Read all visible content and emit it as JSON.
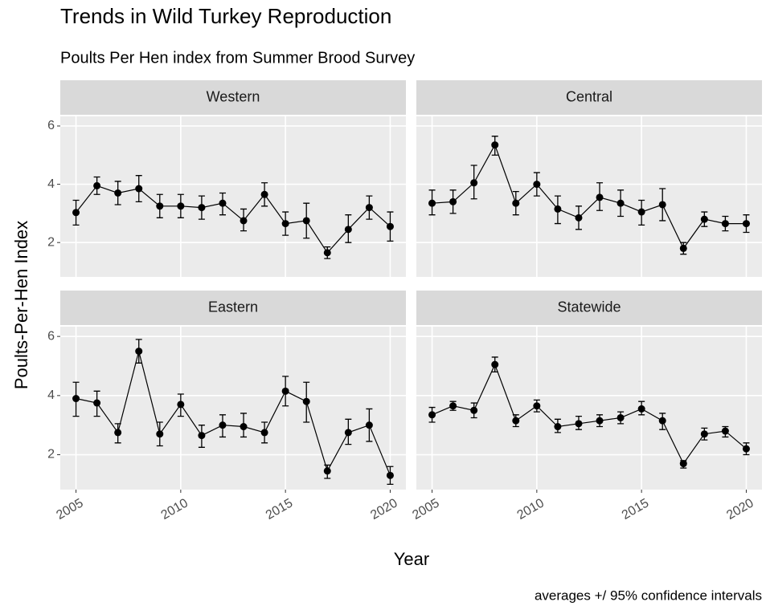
{
  "title": "Trends in Wild Turkey Reproduction",
  "subtitle": "Poults Per Hen index from Summer Brood Survey",
  "x_label": "Year",
  "y_label": "Poults-Per-Hen Index",
  "caption": "averages +/ 95% confidence intervals",
  "chart_data": [
    {
      "type": "line",
      "title": "Western",
      "color": "#000000",
      "grid": true,
      "x": [
        2005,
        2006,
        2007,
        2008,
        2009,
        2010,
        2011,
        2012,
        2013,
        2014,
        2015,
        2016,
        2017,
        2018,
        2019,
        2020
      ],
      "values": [
        3.03,
        3.95,
        3.7,
        3.85,
        3.25,
        3.25,
        3.2,
        3.35,
        2.75,
        3.65,
        2.65,
        2.75,
        1.65,
        2.45,
        3.2,
        2.55
      ],
      "ci_low": [
        2.6,
        3.65,
        3.3,
        3.4,
        2.85,
        2.85,
        2.8,
        2.95,
        2.4,
        3.25,
        2.25,
        2.15,
        1.45,
        2.0,
        2.8,
        2.05
      ],
      "ci_high": [
        3.45,
        4.25,
        4.1,
        4.3,
        3.65,
        3.65,
        3.6,
        3.7,
        3.15,
        4.05,
        3.05,
        3.35,
        1.85,
        2.95,
        3.6,
        3.05
      ],
      "xlim": [
        2004.25,
        2020.75
      ],
      "xticks": [
        2005,
        2010,
        2015,
        2020
      ],
      "ylim": [
        0.82,
        6.33
      ],
      "yticks": [
        2,
        4,
        6
      ]
    },
    {
      "type": "line",
      "title": "Central",
      "color": "#000000",
      "grid": true,
      "x": [
        2005,
        2006,
        2007,
        2008,
        2009,
        2010,
        2011,
        2012,
        2013,
        2014,
        2015,
        2016,
        2017,
        2018,
        2019,
        2020
      ],
      "values": [
        3.35,
        3.4,
        4.05,
        5.35,
        3.35,
        4.0,
        3.15,
        2.85,
        3.55,
        3.35,
        3.05,
        3.3,
        1.8,
        2.8,
        2.65,
        2.65
      ],
      "ci_low": [
        2.95,
        3.0,
        3.5,
        5.0,
        2.95,
        3.6,
        2.65,
        2.45,
        3.1,
        2.9,
        2.6,
        2.75,
        1.6,
        2.55,
        2.4,
        2.35
      ],
      "ci_high": [
        3.8,
        3.8,
        4.65,
        5.65,
        3.75,
        4.4,
        3.6,
        3.25,
        4.05,
        3.8,
        3.45,
        3.85,
        2.0,
        3.05,
        2.9,
        2.95
      ],
      "xlim": [
        2004.25,
        2020.75
      ],
      "xticks": [
        2005,
        2010,
        2015,
        2020
      ],
      "ylim": [
        0.82,
        6.33
      ],
      "yticks": [
        2,
        4,
        6
      ]
    },
    {
      "type": "line",
      "title": "Eastern",
      "color": "#000000",
      "grid": true,
      "x": [
        2005,
        2006,
        2007,
        2008,
        2009,
        2010,
        2011,
        2012,
        2013,
        2014,
        2015,
        2016,
        2017,
        2018,
        2019,
        2020
      ],
      "values": [
        3.9,
        3.75,
        2.75,
        5.5,
        2.7,
        3.7,
        2.65,
        3.0,
        2.95,
        2.75,
        4.15,
        3.8,
        1.45,
        2.75,
        3.0,
        1.3
      ],
      "ci_low": [
        3.3,
        3.3,
        2.4,
        5.1,
        2.3,
        3.3,
        2.25,
        2.6,
        2.6,
        2.4,
        3.65,
        3.1,
        1.2,
        2.35,
        2.45,
        1.0
      ],
      "ci_high": [
        4.45,
        4.15,
        3.05,
        5.9,
        3.1,
        4.05,
        3.0,
        3.35,
        3.4,
        3.1,
        4.65,
        4.45,
        1.65,
        3.2,
        3.55,
        1.6
      ],
      "xlim": [
        2004.25,
        2020.75
      ],
      "xticks": [
        2005,
        2010,
        2015,
        2020
      ],
      "ylim": [
        0.82,
        6.33
      ],
      "yticks": [
        2,
        4,
        6
      ]
    },
    {
      "type": "line",
      "title": "Statewide",
      "color": "#000000",
      "grid": true,
      "x": [
        2005,
        2006,
        2007,
        2008,
        2009,
        2010,
        2011,
        2012,
        2013,
        2014,
        2015,
        2016,
        2017,
        2018,
        2019,
        2020
      ],
      "values": [
        3.35,
        3.65,
        3.5,
        5.05,
        3.15,
        3.65,
        2.95,
        3.05,
        3.15,
        3.25,
        3.55,
        3.15,
        1.7,
        2.7,
        2.8,
        2.2
      ],
      "ci_low": [
        3.1,
        3.5,
        3.25,
        4.8,
        2.95,
        3.45,
        2.75,
        2.85,
        2.95,
        3.05,
        3.35,
        2.85,
        1.55,
        2.5,
        2.6,
        2.0
      ],
      "ci_high": [
        3.6,
        3.8,
        3.75,
        5.3,
        3.35,
        3.85,
        3.2,
        3.3,
        3.35,
        3.45,
        3.8,
        3.4,
        1.8,
        2.9,
        2.95,
        2.4
      ],
      "xlim": [
        2004.25,
        2020.75
      ],
      "xticks": [
        2005,
        2010,
        2015,
        2020
      ],
      "ylim": [
        0.82,
        6.33
      ],
      "yticks": [
        2,
        4,
        6
      ]
    }
  ]
}
